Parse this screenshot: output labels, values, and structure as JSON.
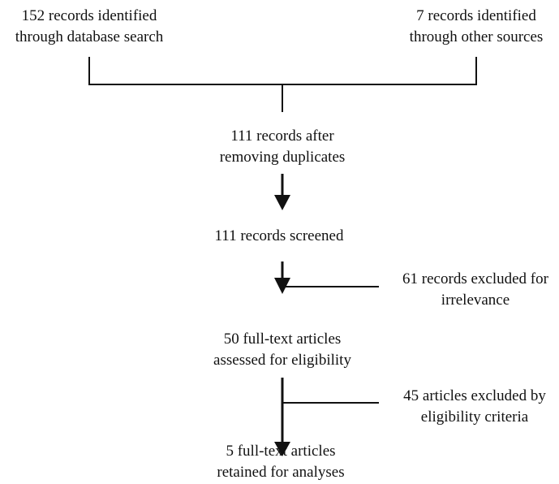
{
  "flow": {
    "source_database": {
      "line1": "152 records identified",
      "line2": "through database search"
    },
    "source_other": {
      "line1": "7 records identified",
      "line2": "through other sources"
    },
    "after_duplicates": {
      "line1": "111 records after",
      "line2": "removing duplicates"
    },
    "screened": {
      "line1": "111 records screened"
    },
    "excluded_irrelevance": {
      "line1": "61 records excluded for",
      "line2": "irrelevance"
    },
    "full_text_assessed": {
      "line1": "50 full-text articles",
      "line2": "assessed for eligibility"
    },
    "excluded_eligibility": {
      "line1": "45 articles excluded by",
      "line2": "eligibility criteria"
    },
    "retained": {
      "line1": "5 full-text articles",
      "line2": "retained for analyses"
    }
  },
  "colors": {
    "line": "#111111",
    "text": "#111111",
    "background": "#ffffff"
  }
}
